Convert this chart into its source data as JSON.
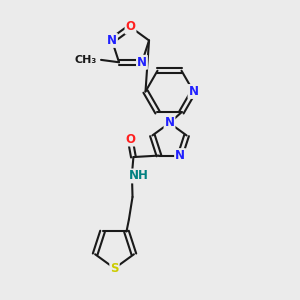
{
  "bg_color": "#ebebeb",
  "bond_color": "#1a1a1a",
  "N_color": "#2020ff",
  "O_color": "#ff2020",
  "S_color": "#cccc00",
  "NH_color": "#008080",
  "lw": 1.5,
  "dbo": 0.008,
  "fs": 8.5,
  "xlim": [
    0,
    1
  ],
  "ylim": [
    0,
    1
  ]
}
